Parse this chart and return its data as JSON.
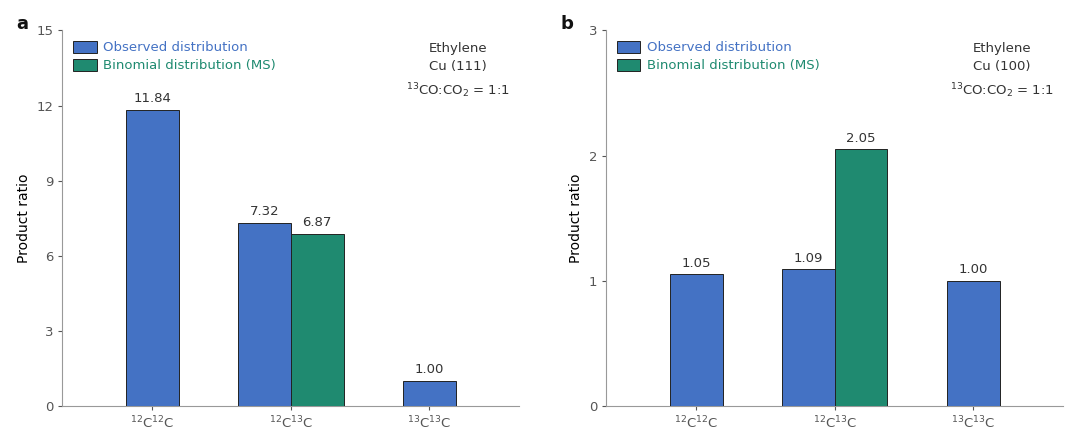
{
  "panel_a": {
    "label": "a",
    "categories": [
      "$^{12}$C$^{12}$C",
      "$^{12}$C$^{13}$C",
      "$^{13}$C$^{13}$C"
    ],
    "observed": [
      11.84,
      7.32,
      1.0
    ],
    "binomial": [
      null,
      6.87,
      null
    ],
    "observed_color": "#4472C4",
    "binomial_color": "#1f8a70",
    "ylim": [
      0,
      15
    ],
    "yticks": [
      0,
      3,
      6,
      9,
      12,
      15
    ],
    "ylabel": "Product ratio",
    "annotation_line1": "Ethylene",
    "annotation_line2": "Cu (111)",
    "annotation_line3": "$^{13}$CO:CO$_2$ = 1:1",
    "legend_observed": "Observed distribution",
    "legend_binomial": "Binomial distribution (MS)"
  },
  "panel_b": {
    "label": "b",
    "categories": [
      "$^{12}$C$^{12}$C",
      "$^{12}$C$^{13}$C",
      "$^{13}$C$^{13}$C"
    ],
    "observed": [
      1.05,
      1.09,
      1.0
    ],
    "binomial": [
      null,
      2.05,
      null
    ],
    "observed_color": "#4472C4",
    "binomial_color": "#1f8a70",
    "ylim": [
      0,
      3
    ],
    "yticks": [
      0,
      1,
      2,
      3
    ],
    "ylabel": "Product ratio",
    "annotation_line1": "Ethylene",
    "annotation_line2": "Cu (100)",
    "annotation_line3": "$^{13}$CO:CO$_2$ = 1:1",
    "legend_observed": "Observed distribution",
    "legend_binomial": "Binomial distribution (MS)"
  },
  "bar_width": 0.38,
  "background_color": "#ffffff",
  "edge_color": "#222222",
  "label_fontsize": 10,
  "tick_fontsize": 9.5,
  "annotation_fontsize": 9.5,
  "bar_label_fontsize": 9.5,
  "panel_label_fontsize": 13,
  "legend_fontsize": 9.5
}
